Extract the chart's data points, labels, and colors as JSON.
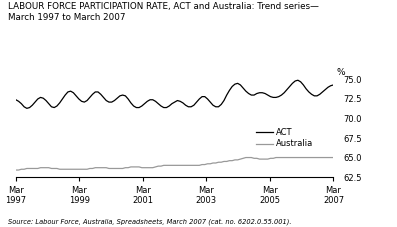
{
  "title": "LABOUR FORCE PARTICIPATION RATE, ACT and Australia: Trend series—\nMarch 1997 to March 2007",
  "ylabel": "%",
  "source": "Source: Labour Force, Australia, Spreadsheets, March 2007 (cat. no. 6202.0.55.001).",
  "ylim": [
    62.5,
    75.0
  ],
  "yticks": [
    62.5,
    65.0,
    67.5,
    70.0,
    72.5,
    75.0
  ],
  "xtick_labels": [
    "Mar\n1997",
    "Mar\n1999",
    "Mar\n2001",
    "Mar\n2003",
    "Mar\n2005",
    "Mar\n2007"
  ],
  "act_color": "#000000",
  "australia_color": "#999999",
  "act_data": [
    72.4,
    72.2,
    71.9,
    71.5,
    71.3,
    71.4,
    71.7,
    72.1,
    72.5,
    72.7,
    72.6,
    72.3,
    71.9,
    71.5,
    71.4,
    71.6,
    72.0,
    72.5,
    73.0,
    73.4,
    73.5,
    73.3,
    72.9,
    72.5,
    72.2,
    72.1,
    72.3,
    72.7,
    73.1,
    73.4,
    73.4,
    73.1,
    72.7,
    72.3,
    72.1,
    72.1,
    72.3,
    72.6,
    72.9,
    73.0,
    72.9,
    72.5,
    72.0,
    71.6,
    71.4,
    71.4,
    71.6,
    71.9,
    72.2,
    72.4,
    72.4,
    72.2,
    71.9,
    71.6,
    71.4,
    71.4,
    71.6,
    71.9,
    72.1,
    72.3,
    72.2,
    72.0,
    71.7,
    71.5,
    71.5,
    71.7,
    72.1,
    72.5,
    72.8,
    72.8,
    72.5,
    72.1,
    71.7,
    71.5,
    71.5,
    71.8,
    72.3,
    73.0,
    73.6,
    74.1,
    74.4,
    74.5,
    74.3,
    73.9,
    73.5,
    73.2,
    73.0,
    73.0,
    73.2,
    73.3,
    73.3,
    73.2,
    73.0,
    72.8,
    72.7,
    72.7,
    72.8,
    73.0,
    73.3,
    73.7,
    74.1,
    74.5,
    74.8,
    74.9,
    74.7,
    74.3,
    73.8,
    73.4,
    73.1,
    72.9,
    72.9,
    73.1,
    73.4,
    73.7,
    74.0,
    74.2,
    74.3
  ],
  "aus_data": [
    63.4,
    63.4,
    63.5,
    63.5,
    63.6,
    63.6,
    63.6,
    63.6,
    63.6,
    63.7,
    63.7,
    63.7,
    63.7,
    63.6,
    63.6,
    63.6,
    63.5,
    63.5,
    63.5,
    63.5,
    63.5,
    63.5,
    63.5,
    63.5,
    63.5,
    63.5,
    63.5,
    63.6,
    63.6,
    63.7,
    63.7,
    63.7,
    63.7,
    63.7,
    63.6,
    63.6,
    63.6,
    63.6,
    63.6,
    63.6,
    63.7,
    63.7,
    63.8,
    63.8,
    63.8,
    63.8,
    63.7,
    63.7,
    63.7,
    63.7,
    63.7,
    63.8,
    63.9,
    63.9,
    64.0,
    64.0,
    64.0,
    64.0,
    64.0,
    64.0,
    64.0,
    64.0,
    64.0,
    64.0,
    64.0,
    64.0,
    64.0,
    64.0,
    64.1,
    64.1,
    64.2,
    64.2,
    64.3,
    64.3,
    64.4,
    64.4,
    64.5,
    64.5,
    64.6,
    64.6,
    64.7,
    64.7,
    64.8,
    64.9,
    65.0,
    65.0,
    65.0,
    64.9,
    64.9,
    64.8,
    64.8,
    64.8,
    64.8,
    64.9,
    64.9,
    65.0,
    65.0,
    65.0,
    65.0,
    65.0,
    65.0,
    65.0,
    65.0,
    65.0,
    65.0,
    65.0,
    65.0,
    65.0,
    65.0,
    65.0,
    65.0,
    65.0,
    65.0,
    65.0,
    65.0,
    65.0,
    65.0
  ]
}
